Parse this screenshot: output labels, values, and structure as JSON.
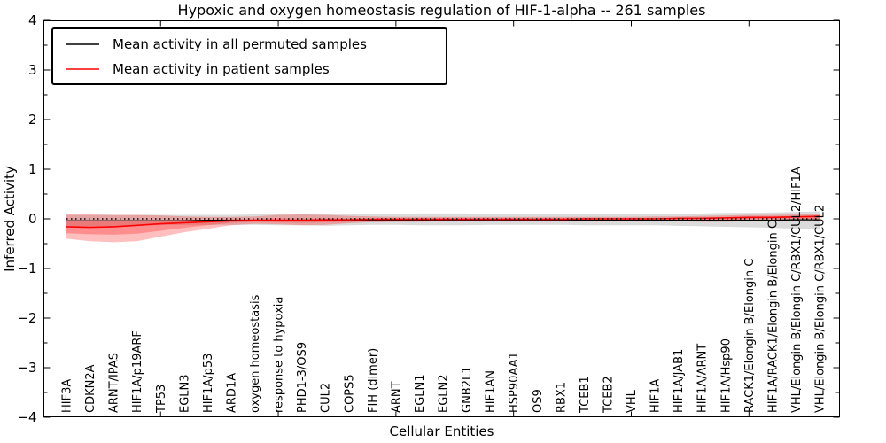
{
  "chart_data": {
    "type": "line",
    "title": "Hypoxic and oxygen homeostasis regulation of HIF-1-alpha -- 261 samples",
    "xlabel": "Cellular Entities",
    "ylabel": "Inferred Activity",
    "ylim": [
      -4,
      4
    ],
    "y_major_ticks": [
      4,
      3,
      2,
      1,
      0,
      -1,
      -2,
      -3,
      -4
    ],
    "y_minor_step": 0.5,
    "x_major_tick_every": 5,
    "legend_position": "upper left",
    "grid": false,
    "categories": [
      "HIF3A",
      "CDKN2A",
      "ARNT/IPAS",
      "HIF1A/p19ARF",
      "TP53",
      "EGLN3",
      "HIF1A/p53",
      "ARD1A",
      "oxygen homeostasis",
      "response to hypoxia",
      "PHD1-3/OS9",
      "CUL2",
      "COPS5",
      "FIH (dimer)",
      "ARNT",
      "EGLN1",
      "EGLN2",
      "GNB2L1",
      "HIF1AN",
      "HSP90AA1",
      "OS9",
      "RBX1",
      "TCEB1",
      "TCEB2",
      "VHL",
      "HIF1A",
      "HIF1A/JAB1",
      "HIF1A/ARNT",
      "HIF1A/Hsp90",
      "RACK1/Elongin B/Elongin C",
      "HIF1A/RACK1/Elongin B/Elongin C",
      "VHL/Elongin B/Elongin C/RBX1/CUL2/HIF1A",
      "VHL/Elongin B/Elongin C/RBX1/CUL2"
    ],
    "legend": [
      {
        "label": "Mean activity in all permuted samples",
        "color": "#000000"
      },
      {
        "label": "Mean activity in patient samples",
        "color": "#ff0000"
      }
    ],
    "zero_line": {
      "y": 0,
      "style": "dotted",
      "color": "#000000"
    },
    "series": [
      {
        "name": "Mean activity in all permuted samples",
        "color": "#000000",
        "width": 1.3,
        "values": [
          -0.04,
          -0.04,
          -0.04,
          -0.04,
          -0.04,
          -0.04,
          -0.03,
          -0.03,
          -0.03,
          -0.03,
          -0.03,
          -0.03,
          -0.03,
          -0.03,
          -0.03,
          -0.03,
          -0.03,
          -0.03,
          -0.03,
          -0.03,
          -0.03,
          -0.03,
          -0.03,
          -0.03,
          -0.03,
          -0.03,
          -0.03,
          -0.03,
          -0.03,
          -0.03,
          -0.03,
          -0.02,
          -0.02
        ]
      },
      {
        "name": "Mean activity in patient samples",
        "color": "#ff0000",
        "width": 1.6,
        "values": [
          -0.16,
          -0.17,
          -0.16,
          -0.13,
          -0.1,
          -0.08,
          -0.06,
          -0.04,
          -0.03,
          -0.03,
          -0.03,
          -0.02,
          -0.02,
          -0.01,
          -0.01,
          -0.01,
          -0.01,
          -0.01,
          -0.01,
          -0.01,
          -0.01,
          -0.01,
          0.0,
          0.0,
          0.0,
          0.0,
          0.01,
          0.01,
          0.02,
          0.03,
          0.03,
          0.04,
          0.05
        ]
      }
    ],
    "bands": [
      {
        "name": "permuted-spread",
        "color": "#000000",
        "opacity": 0.14,
        "top": [
          0.08,
          0.08,
          0.08,
          0.08,
          0.08,
          0.08,
          0.08,
          0.08,
          0.09,
          0.09,
          0.1,
          0.1,
          0.1,
          0.1,
          0.1,
          0.11,
          0.11,
          0.11,
          0.1,
          0.1,
          0.1,
          0.1,
          0.1,
          0.1,
          0.1,
          0.1,
          0.1,
          0.11,
          0.12,
          0.12,
          0.13,
          0.14,
          0.15
        ],
        "bottom": [
          -0.14,
          -0.15,
          -0.14,
          -0.13,
          -0.13,
          -0.12,
          -0.12,
          -0.12,
          -0.12,
          -0.13,
          -0.13,
          -0.14,
          -0.13,
          -0.12,
          -0.12,
          -0.13,
          -0.13,
          -0.13,
          -0.12,
          -0.12,
          -0.12,
          -0.12,
          -0.13,
          -0.13,
          -0.13,
          -0.13,
          -0.14,
          -0.15,
          -0.16,
          -0.17,
          -0.18,
          -0.2,
          -0.22
        ]
      },
      {
        "name": "patient-spread-outer",
        "color": "#ff0000",
        "opacity": 0.25,
        "top": [
          0.1,
          0.09,
          0.08,
          0.08,
          0.07,
          0.05,
          0.04,
          0.04,
          0.05,
          0.08,
          0.09,
          0.08,
          0.06,
          0.05,
          0.04,
          0.04,
          0.04,
          0.04,
          0.04,
          0.04,
          0.04,
          0.04,
          0.04,
          0.04,
          0.04,
          0.05,
          0.05,
          0.06,
          0.07,
          0.08,
          0.08,
          0.09,
          0.09
        ],
        "bottom": [
          -0.4,
          -0.45,
          -0.47,
          -0.45,
          -0.36,
          -0.27,
          -0.2,
          -0.13,
          -0.1,
          -0.11,
          -0.13,
          -0.12,
          -0.09,
          -0.07,
          -0.06,
          -0.06,
          -0.05,
          -0.05,
          -0.05,
          -0.05,
          -0.05,
          -0.05,
          -0.05,
          -0.05,
          -0.05,
          -0.05,
          -0.05,
          -0.06,
          -0.06,
          -0.05,
          -0.04,
          -0.03,
          -0.04
        ]
      },
      {
        "name": "patient-spread-inner",
        "color": "#ff0000",
        "opacity": 0.25,
        "top": [
          -0.04,
          -0.05,
          -0.05,
          -0.04,
          -0.03,
          -0.02,
          -0.02,
          -0.01,
          0.0,
          0.01,
          0.01,
          0.01,
          0.01,
          0.01,
          0.01,
          0.01,
          0.01,
          0.01,
          0.01,
          0.01,
          0.01,
          0.01,
          0.01,
          0.01,
          0.01,
          0.02,
          0.02,
          0.03,
          0.04,
          0.05,
          0.05,
          0.06,
          0.07
        ],
        "bottom": [
          -0.29,
          -0.31,
          -0.32,
          -0.3,
          -0.24,
          -0.18,
          -0.13,
          -0.08,
          -0.06,
          -0.07,
          -0.08,
          -0.07,
          -0.06,
          -0.04,
          -0.03,
          -0.03,
          -0.03,
          -0.03,
          -0.03,
          -0.03,
          -0.03,
          -0.03,
          -0.02,
          -0.02,
          -0.02,
          -0.02,
          -0.02,
          -0.02,
          -0.02,
          -0.01,
          0.0,
          0.01,
          0.0
        ]
      }
    ]
  }
}
